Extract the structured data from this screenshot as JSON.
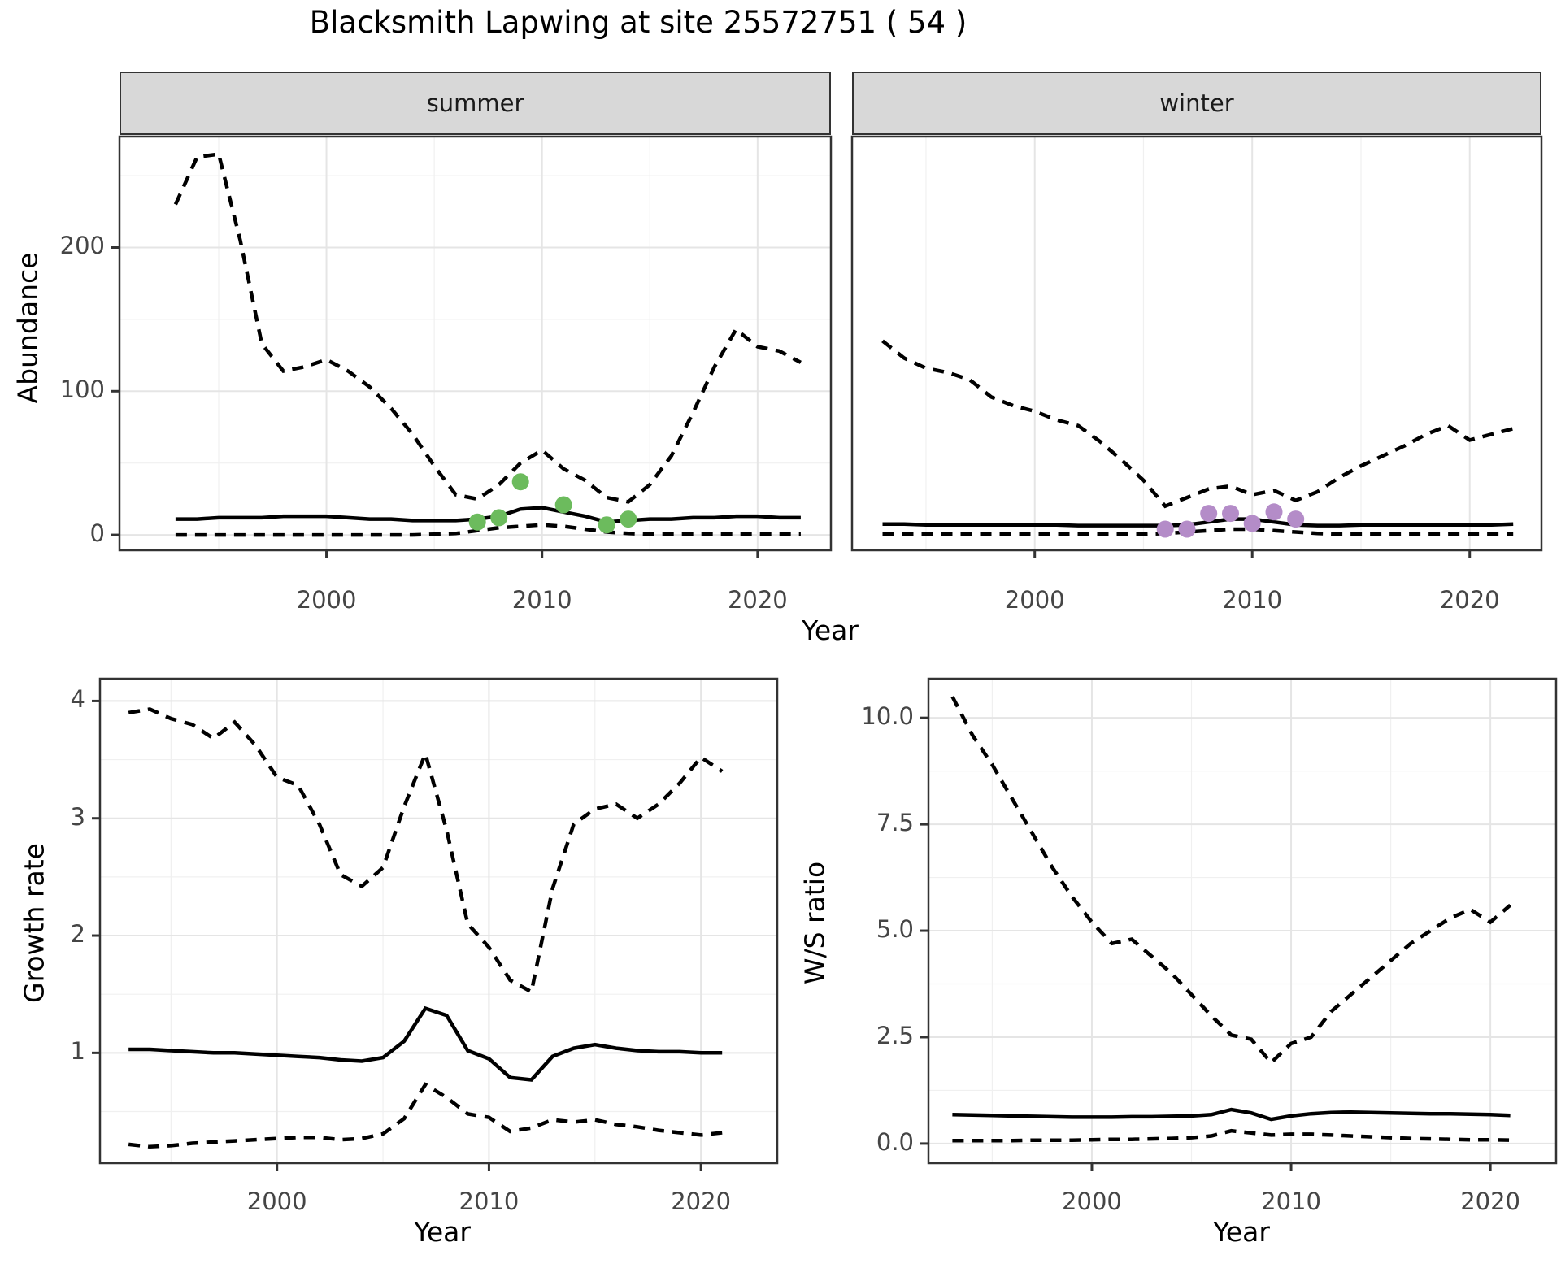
{
  "title": "Blacksmith Lapwing at site 25572751 ( 54 )",
  "colors": {
    "summer_point": "#6CBB5D",
    "winter_point": "#B48CC8",
    "line": "#000000",
    "grid_major": "#e5e5e5",
    "grid_minor": "#f0f0f0",
    "panel_border": "#333333",
    "strip_bg": "#d8d8d8",
    "tick_label": "#454545"
  },
  "chart_data": [
    {
      "id": "abundance_summer",
      "type": "line",
      "facet": "summer",
      "xlabel": "Year",
      "ylabel": "Abundance",
      "xlim": [
        1990.4,
        2023.4
      ],
      "ylim": [
        -10.7,
        277.2
      ],
      "x_ticks": {
        "major": [
          2000,
          2010,
          2020
        ],
        "labels": [
          "2000",
          "2010",
          "2020"
        ],
        "minor": [
          1995,
          2005,
          2015
        ]
      },
      "y_ticks": {
        "major": [
          0,
          100,
          200
        ],
        "labels": [
          "0",
          "100",
          "200"
        ],
        "minor": [
          50,
          150,
          250
        ]
      },
      "x": [
        1993,
        1994,
        1995,
        1996,
        1997,
        1998,
        1999,
        2000,
        2001,
        2002,
        2003,
        2004,
        2005,
        2006,
        2007,
        2008,
        2009,
        2010,
        2011,
        2012,
        2013,
        2014,
        2015,
        2016,
        2017,
        2018,
        2019,
        2020,
        2021,
        2022
      ],
      "series": [
        {
          "name": "upper_ci",
          "style": "dashed",
          "values": [
            230,
            263,
            265,
            205,
            133,
            114,
            117,
            122,
            114,
            103,
            88,
            70,
            48,
            28,
            25,
            35,
            50,
            59,
            46,
            38,
            26,
            23,
            35,
            55,
            85,
            117,
            143,
            131,
            128,
            120
          ]
        },
        {
          "name": "median",
          "style": "solid",
          "values": [
            11,
            11,
            12,
            12,
            12,
            13,
            13,
            13,
            12,
            11,
            11,
            10,
            10,
            10,
            11,
            13,
            18,
            19,
            16,
            13,
            9,
            10,
            11,
            11,
            12,
            12,
            13,
            13,
            12,
            12
          ]
        },
        {
          "name": "lower_ci",
          "style": "dashed",
          "values": [
            0,
            0,
            0,
            0,
            0,
            0,
            0,
            0,
            0,
            0,
            0,
            0,
            0.5,
            1,
            3,
            5,
            6,
            7,
            6,
            4,
            2,
            1,
            0.5,
            0.5,
            0.5,
            0.5,
            0.5,
            0.5,
            0.5,
            0.5
          ]
        }
      ],
      "points": {
        "name": "observed_counts_summer",
        "color": "#6CBB5D",
        "x": [
          2007,
          2008,
          2009,
          2011,
          2013,
          2014
        ],
        "y": [
          9,
          12,
          37,
          21,
          7,
          11
        ]
      }
    },
    {
      "id": "abundance_winter",
      "type": "line",
      "facet": "winter",
      "xlabel": "Year",
      "ylabel": "Abundance",
      "xlim": [
        1991.6,
        2023.3
      ],
      "ylim": [
        -10.7,
        277.2
      ],
      "x_ticks": {
        "major": [
          2000,
          2010,
          2020
        ],
        "labels": [
          "2000",
          "2010",
          "2020"
        ],
        "minor": [
          1995,
          2005,
          2015
        ]
      },
      "y_ticks": {
        "major": [],
        "labels": [],
        "minor": []
      },
      "x": [
        1993,
        1994,
        1995,
        1996,
        1997,
        1998,
        1999,
        2000,
        2001,
        2002,
        2003,
        2004,
        2005,
        2006,
        2007,
        2008,
        2009,
        2010,
        2011,
        2012,
        2013,
        2014,
        2015,
        2016,
        2017,
        2018,
        2019,
        2020,
        2021,
        2022
      ],
      "series": [
        {
          "name": "upper_ci",
          "style": "dashed",
          "values": [
            135,
            123,
            116,
            113,
            108,
            96,
            90,
            86,
            80,
            76,
            65,
            52,
            38,
            20,
            26,
            32,
            34,
            28,
            31,
            24,
            30,
            40,
            48,
            55,
            62,
            70,
            76,
            66,
            70,
            74
          ]
        },
        {
          "name": "median",
          "style": "solid",
          "values": [
            7.5,
            7.5,
            7,
            7,
            7,
            7,
            7,
            7,
            7,
            6.5,
            6.5,
            6.5,
            6.5,
            6.5,
            7,
            9,
            11,
            11,
            9,
            7,
            6.5,
            6.5,
            7,
            7,
            7,
            7,
            7,
            7,
            7,
            7.5
          ]
        },
        {
          "name": "lower_ci",
          "style": "dashed",
          "values": [
            0.5,
            0.5,
            0.5,
            0.5,
            0.5,
            0.5,
            0.5,
            0.5,
            0.5,
            0.5,
            0.5,
            0.5,
            0.5,
            1,
            2,
            3,
            4,
            4,
            3,
            2,
            1,
            0.5,
            0.5,
            0.5,
            0.5,
            0.5,
            0.5,
            0.5,
            0.5,
            0.5
          ]
        }
      ],
      "points": {
        "name": "observed_counts_winter",
        "color": "#B48CC8",
        "x": [
          2006,
          2007,
          2008,
          2009,
          2010,
          2011,
          2012
        ],
        "y": [
          4,
          4,
          15,
          15,
          8,
          16,
          11
        ]
      }
    },
    {
      "id": "growth_rate",
      "type": "line",
      "facet": "",
      "xlabel": "Year",
      "ylabel": "Growth rate",
      "xlim": [
        1991.65,
        2023.6
      ],
      "ylim": [
        0.06,
        4.19
      ],
      "x_ticks": {
        "major": [
          2000,
          2010,
          2020
        ],
        "labels": [
          "2000",
          "2010",
          "2020"
        ],
        "minor": [
          1995,
          2005,
          2015
        ]
      },
      "y_ticks": {
        "major": [
          1,
          2,
          3,
          4
        ],
        "labels": [
          "1",
          "2",
          "3",
          "4"
        ],
        "minor": [
          0.5,
          1.5,
          2.5,
          3.5
        ]
      },
      "x": [
        1993,
        1994,
        1995,
        1996,
        1997,
        1998,
        1999,
        2000,
        2001,
        2002,
        2003,
        2004,
        2005,
        2006,
        2007,
        2008,
        2009,
        2010,
        2011,
        2012,
        2013,
        2014,
        2015,
        2016,
        2017,
        2018,
        2019,
        2020,
        2021
      ],
      "series": [
        {
          "name": "upper_ci",
          "style": "dashed",
          "values": [
            3.9,
            3.93,
            3.85,
            3.8,
            3.68,
            3.82,
            3.62,
            3.35,
            3.28,
            2.95,
            2.52,
            2.42,
            2.58,
            3.1,
            3.55,
            2.9,
            2.1,
            1.9,
            1.62,
            1.52,
            2.4,
            2.95,
            3.08,
            3.12,
            3.0,
            3.12,
            3.3,
            3.52,
            3.4
          ]
        },
        {
          "name": "median",
          "style": "solid",
          "values": [
            1.03,
            1.03,
            1.02,
            1.01,
            1.0,
            1.0,
            0.99,
            0.98,
            0.97,
            0.96,
            0.94,
            0.93,
            0.96,
            1.1,
            1.38,
            1.32,
            1.02,
            0.95,
            0.79,
            0.77,
            0.97,
            1.04,
            1.07,
            1.04,
            1.02,
            1.01,
            1.01,
            1.0,
            1.0
          ]
        },
        {
          "name": "lower_ci",
          "style": "dashed",
          "values": [
            0.22,
            0.2,
            0.21,
            0.23,
            0.24,
            0.25,
            0.26,
            0.27,
            0.28,
            0.28,
            0.26,
            0.27,
            0.31,
            0.44,
            0.73,
            0.62,
            0.48,
            0.45,
            0.33,
            0.36,
            0.43,
            0.41,
            0.43,
            0.39,
            0.37,
            0.34,
            0.32,
            0.3,
            0.32
          ]
        }
      ],
      "points": null
    },
    {
      "id": "ws_ratio",
      "type": "line",
      "facet": "",
      "xlabel": "Year",
      "ylabel": "W/S ratio",
      "xlim": [
        1991.8,
        2023.3
      ],
      "ylim": [
        -0.46,
        10.92
      ],
      "x_ticks": {
        "major": [
          2000,
          2010,
          2020
        ],
        "labels": [
          "2000",
          "2010",
          "2020"
        ],
        "minor": [
          1995,
          2005,
          2015
        ]
      },
      "y_ticks": {
        "major": [
          0,
          2.5,
          5,
          7.5,
          10
        ],
        "labels": [
          "0.0",
          "2.5",
          "5.0",
          "7.5",
          "10.0"
        ],
        "minor": [
          1.25,
          3.75,
          6.25,
          8.75
        ]
      },
      "x": [
        1993,
        1994,
        1995,
        1996,
        1997,
        1998,
        1999,
        2000,
        2001,
        2002,
        2003,
        2004,
        2005,
        2006,
        2007,
        2008,
        2009,
        2010,
        2011,
        2012,
        2013,
        2014,
        2015,
        2016,
        2017,
        2018,
        2019,
        2020,
        2021
      ],
      "series": [
        {
          "name": "upper_ci",
          "style": "dashed",
          "values": [
            10.5,
            9.6,
            8.9,
            8.1,
            7.3,
            6.5,
            5.8,
            5.2,
            4.7,
            4.8,
            4.4,
            4.0,
            3.5,
            3.0,
            2.55,
            2.45,
            1.9,
            2.35,
            2.5,
            3.1,
            3.5,
            3.9,
            4.3,
            4.7,
            5.0,
            5.3,
            5.5,
            5.2,
            5.6
          ]
        },
        {
          "name": "median",
          "style": "solid",
          "values": [
            0.68,
            0.67,
            0.66,
            0.65,
            0.64,
            0.63,
            0.62,
            0.62,
            0.62,
            0.63,
            0.63,
            0.64,
            0.65,
            0.68,
            0.8,
            0.72,
            0.57,
            0.65,
            0.7,
            0.73,
            0.74,
            0.73,
            0.72,
            0.71,
            0.7,
            0.7,
            0.69,
            0.68,
            0.66
          ]
        },
        {
          "name": "lower_ci",
          "style": "dashed",
          "values": [
            0.07,
            0.07,
            0.07,
            0.07,
            0.08,
            0.08,
            0.08,
            0.09,
            0.1,
            0.1,
            0.11,
            0.12,
            0.14,
            0.18,
            0.3,
            0.25,
            0.2,
            0.22,
            0.22,
            0.2,
            0.18,
            0.16,
            0.14,
            0.12,
            0.11,
            0.1,
            0.09,
            0.09,
            0.08
          ]
        }
      ],
      "points": null
    }
  ]
}
